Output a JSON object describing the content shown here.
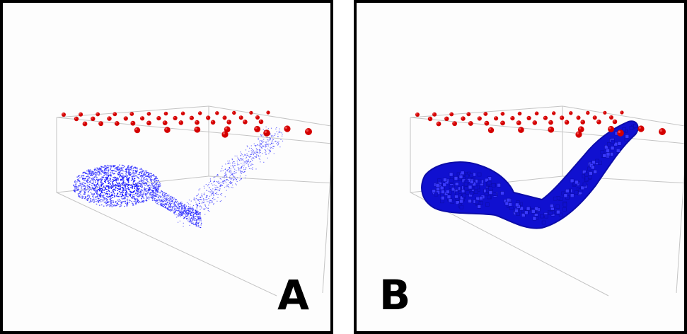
{
  "panels": [
    {
      "id": "A",
      "label": "A",
      "render_style": "sparse blue voxel point cloud",
      "shape_color": "#1a1aff",
      "sphere_color": "#d40000"
    },
    {
      "id": "B",
      "label": "B",
      "render_style": "solid blue voxel surface",
      "shape_color": "#1010d0",
      "sphere_color": "#d40000"
    }
  ],
  "colors": {
    "background": "#fdfdfd",
    "border": "#000000",
    "box_lines": "#bdbdbd"
  }
}
